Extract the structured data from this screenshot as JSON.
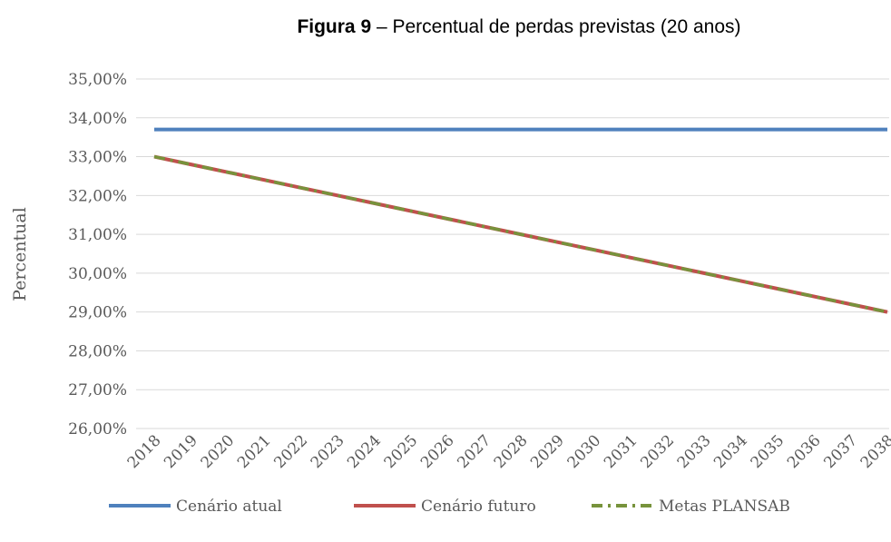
{
  "chart_data": {
    "type": "line",
    "title_bold": "Figura 9",
    "title": "– Percentual de perdas previstas (20 anos)",
    "y_label": "Percentual",
    "categories": [
      "2018",
      "2019",
      "2020",
      "2021",
      "2022",
      "2023",
      "2024",
      "2025",
      "2026",
      "2027",
      "2028",
      "2029",
      "2030",
      "2031",
      "2032",
      "2033",
      "2034",
      "2035",
      "2036",
      "2037",
      "2038"
    ],
    "series": [
      {
        "name": "Cenário atual",
        "color": "#4f81bd",
        "values": [
          33.7,
          33.7,
          33.7,
          33.7,
          33.7,
          33.7,
          33.7,
          33.7,
          33.7,
          33.7,
          33.7,
          33.7,
          33.7,
          33.7,
          33.7,
          33.7,
          33.7,
          33.7,
          33.7,
          33.7,
          33.7
        ]
      },
      {
        "name": "Cenário futuro",
        "color": "#c0504d",
        "values": [
          33,
          32.8,
          32.6,
          32.4,
          32.2,
          32,
          31.8,
          31.6,
          31.4,
          31.2,
          31,
          30.8,
          30.6,
          30.4,
          30.2,
          30,
          29.8,
          29.6,
          29.4,
          29.2,
          29
        ]
      },
      {
        "name": "Metas PLANSAB",
        "color": "#77933c",
        "dashed": true,
        "values": [
          33,
          32.8,
          32.6,
          32.4,
          32.2,
          32,
          31.8,
          31.6,
          31.4,
          31.2,
          31,
          30.8,
          30.6,
          30.4,
          30.2,
          30,
          29.8,
          29.6,
          29.4,
          29.2,
          29
        ]
      }
    ],
    "ylim": [
      26,
      35
    ],
    "yticks": [
      {
        "value": 26,
        "label": "26,00%"
      },
      {
        "value": 27,
        "label": "27,00%"
      },
      {
        "value": 28,
        "label": "28,00%"
      },
      {
        "value": 29,
        "label": "29,00%"
      },
      {
        "value": 30,
        "label": "30,00%"
      },
      {
        "value": 31,
        "label": "31,00%"
      },
      {
        "value": 32,
        "label": "32,00%"
      },
      {
        "value": 33,
        "label": "33,00%"
      },
      {
        "value": 34,
        "label": "34,00%"
      },
      {
        "value": 35,
        "label": "35,00%"
      }
    ],
    "grid": true,
    "legend": "bottom"
  }
}
